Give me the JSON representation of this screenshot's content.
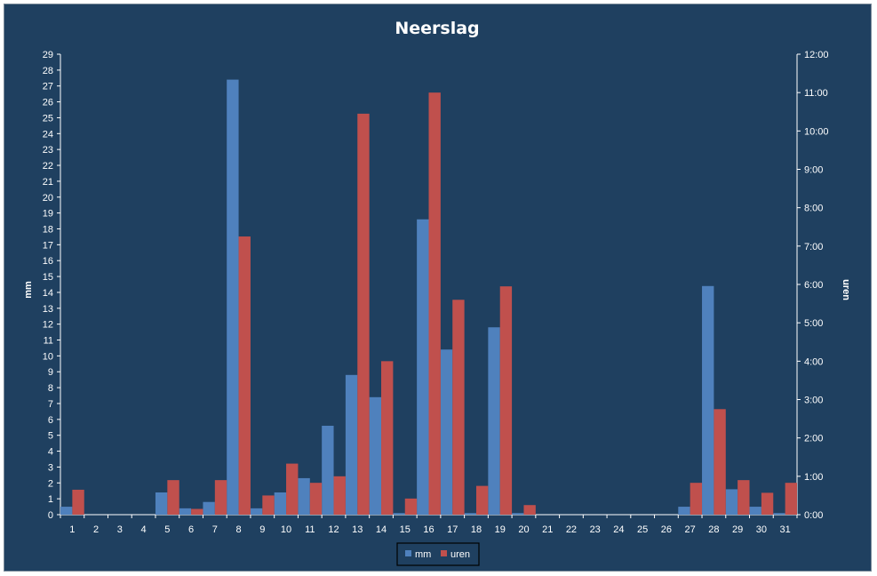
{
  "chart_data": {
    "type": "bar",
    "title": "Neerslag",
    "ylabel": "mm",
    "y2label": "uren",
    "categories": [
      "1",
      "2",
      "3",
      "4",
      "5",
      "6",
      "7",
      "8",
      "9",
      "10",
      "11",
      "12",
      "13",
      "14",
      "15",
      "16",
      "17",
      "18",
      "19",
      "20",
      "21",
      "22",
      "23",
      "24",
      "25",
      "26",
      "27",
      "28",
      "29",
      "30",
      "31"
    ],
    "ylim": [
      0,
      29
    ],
    "y2lim_hours": [
      0,
      12
    ],
    "y_ticks": [
      "0",
      "1",
      "2",
      "3",
      "4",
      "5",
      "6",
      "7",
      "8",
      "9",
      "10",
      "11",
      "12",
      "13",
      "14",
      "15",
      "16",
      "17",
      "18",
      "19",
      "20",
      "21",
      "22",
      "23",
      "24",
      "25",
      "26",
      "27",
      "28",
      "29"
    ],
    "y2_ticks": [
      "0:00",
      "1:00",
      "2:00",
      "3:00",
      "4:00",
      "5:00",
      "6:00",
      "7:00",
      "8:00",
      "9:00",
      "10:00",
      "11:00",
      "12:00"
    ],
    "series": [
      {
        "name": "mm",
        "axis": "left",
        "color": "#4f81bd",
        "values": [
          0.5,
          0,
          0,
          0,
          1.4,
          0.4,
          0.8,
          27.4,
          0.4,
          1.4,
          2.3,
          5.6,
          8.8,
          7.4,
          0.1,
          18.6,
          10.4,
          0.1,
          11.8,
          0.1,
          0,
          0,
          0,
          0,
          0,
          0,
          0.5,
          14.4,
          1.6,
          0.5,
          0.1
        ]
      },
      {
        "name": "uren",
        "axis": "right",
        "color": "#c0504d",
        "values": [
          0.65,
          0,
          0,
          0,
          0.9,
          0.15,
          0.9,
          7.25,
          0.5,
          1.33,
          0.83,
          1.0,
          10.45,
          4.0,
          0.42,
          11.0,
          5.6,
          0.75,
          5.95,
          0.25,
          0,
          0,
          0,
          0,
          0,
          0,
          0.83,
          2.75,
          0.9,
          0.57,
          0.83
        ]
      }
    ],
    "legend_position": "bottom",
    "grid": false
  },
  "colors": {
    "background": "#1f4060",
    "mm": "#4f81bd",
    "uren": "#c0504d"
  }
}
